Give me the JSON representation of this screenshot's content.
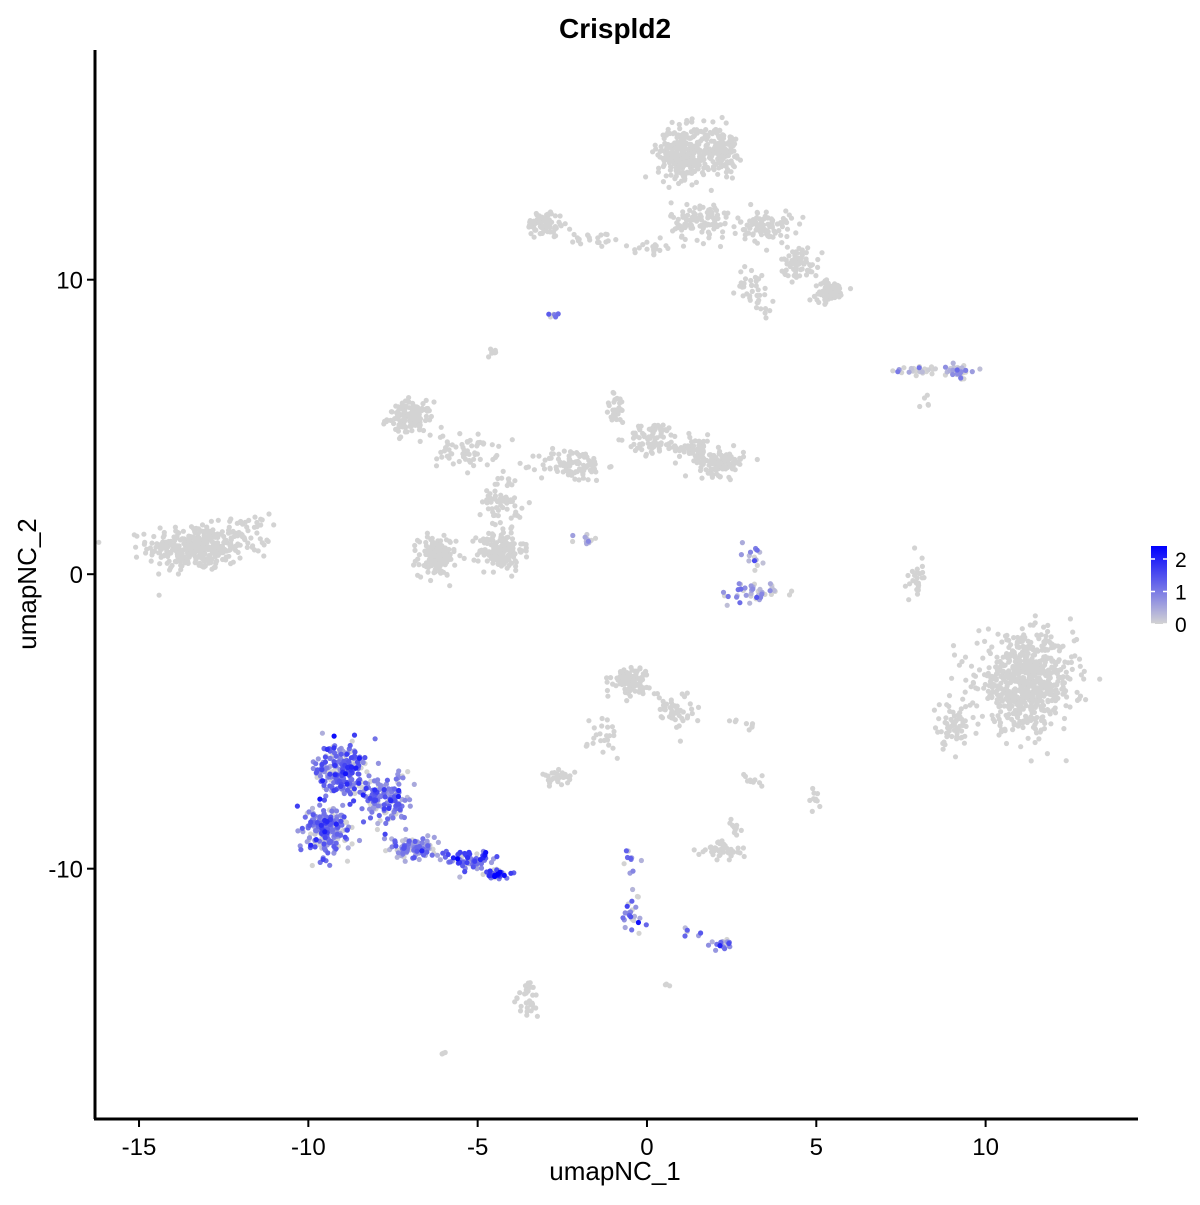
{
  "chart_data": {
    "type": "scatter",
    "title": "Crispld2",
    "xlabel": "umapNC_1",
    "ylabel": "umapNC_2",
    "xlim": [
      -16.3,
      14.5
    ],
    "ylim": [
      -18.5,
      17.8
    ],
    "x_ticks": [
      -15,
      -10,
      -5,
      0,
      5,
      10
    ],
    "y_ticks": [
      -10,
      0,
      10
    ],
    "grid": false,
    "legend": {
      "placement": "right",
      "type": "colorbar",
      "range": [
        0,
        2.4
      ],
      "ticks": [
        0,
        1,
        2
      ],
      "low_color": "#d3d3d3",
      "high_color": "#0000ff"
    },
    "series": [
      {
        "values": [
          {
            "x": -13.3,
            "y": 0.9,
            "sx": 1.3,
            "sy": 0.7,
            "n": 340,
            "expr": 0.0
          },
          {
            "x": -11.8,
            "y": 1.4,
            "sx": 0.6,
            "sy": 0.6,
            "n": 40,
            "expr": 0.0
          },
          {
            "x": -7.0,
            "y": 5.3,
            "sx": 0.6,
            "sy": 0.5,
            "n": 130,
            "expr": 0.0
          },
          {
            "x": -5.3,
            "y": 4.2,
            "sx": 0.8,
            "sy": 0.5,
            "n": 60,
            "expr": 0.0
          },
          {
            "x": -4.3,
            "y": 2.5,
            "sx": 0.5,
            "sy": 0.9,
            "n": 60,
            "expr": 0.0
          },
          {
            "x": -6.2,
            "y": 0.6,
            "sx": 0.5,
            "sy": 0.6,
            "n": 150,
            "expr": 0.0
          },
          {
            "x": -4.3,
            "y": 0.8,
            "sx": 0.6,
            "sy": 0.6,
            "n": 150,
            "expr": 0.0
          },
          {
            "x": -2.2,
            "y": 3.7,
            "sx": 0.9,
            "sy": 0.5,
            "n": 100,
            "expr": 0.0
          },
          {
            "x": -0.9,
            "y": 5.6,
            "sx": 0.3,
            "sy": 0.5,
            "n": 30,
            "expr": 0.0
          },
          {
            "x": 0.2,
            "y": 4.6,
            "sx": 0.7,
            "sy": 0.5,
            "n": 80,
            "expr": 0.0
          },
          {
            "x": 1.4,
            "y": 4.3,
            "sx": 0.5,
            "sy": 0.4,
            "n": 60,
            "expr": 0.0
          },
          {
            "x": 2.2,
            "y": 3.8,
            "sx": 0.6,
            "sy": 0.4,
            "n": 110,
            "expr": 0.0
          },
          {
            "x": -1.8,
            "y": 1.1,
            "sx": 0.5,
            "sy": 0.3,
            "n": 12,
            "expr": 0.3
          },
          {
            "x": 1.1,
            "y": 14.3,
            "sx": 0.7,
            "sy": 0.8,
            "n": 330,
            "expr": 0.0
          },
          {
            "x": 2.2,
            "y": 14.4,
            "sx": 0.4,
            "sy": 0.7,
            "n": 130,
            "expr": 0.0
          },
          {
            "x": 1.6,
            "y": 12.0,
            "sx": 0.8,
            "sy": 0.6,
            "n": 110,
            "expr": 0.0
          },
          {
            "x": 3.5,
            "y": 11.8,
            "sx": 0.7,
            "sy": 0.5,
            "n": 90,
            "expr": 0.0
          },
          {
            "x": 4.5,
            "y": 10.6,
            "sx": 0.5,
            "sy": 0.5,
            "n": 70,
            "expr": 0.0
          },
          {
            "x": 5.4,
            "y": 9.6,
            "sx": 0.4,
            "sy": 0.3,
            "n": 90,
            "expr": 0.0
          },
          {
            "x": 3.2,
            "y": 9.7,
            "sx": 0.5,
            "sy": 0.7,
            "n": 40,
            "expr": 0.0
          },
          {
            "x": -3.0,
            "y": 11.9,
            "sx": 0.5,
            "sy": 0.4,
            "n": 80,
            "expr": 0.0
          },
          {
            "x": -1.5,
            "y": 11.4,
            "sx": 0.7,
            "sy": 0.3,
            "n": 20,
            "expr": 0.0
          },
          {
            "x": 0.1,
            "y": 11.1,
            "sx": 0.4,
            "sy": 0.2,
            "n": 20,
            "expr": 0.0
          },
          {
            "x": -2.8,
            "y": 8.8,
            "sx": 0.15,
            "sy": 0.12,
            "n": 6,
            "expr": 0.5
          },
          {
            "x": -4.5,
            "y": 7.5,
            "sx": 0.2,
            "sy": 0.2,
            "n": 8,
            "expr": 0.0
          },
          {
            "x": 7.9,
            "y": 6.9,
            "sx": 0.6,
            "sy": 0.15,
            "n": 30,
            "expr": 0.1
          },
          {
            "x": 9.2,
            "y": 6.9,
            "sx": 0.4,
            "sy": 0.2,
            "n": 40,
            "expr": 0.3
          },
          {
            "x": 8.3,
            "y": 5.8,
            "sx": 0.2,
            "sy": 0.3,
            "n": 5,
            "expr": 0.0
          },
          {
            "x": 11.2,
            "y": -3.7,
            "sx": 1.3,
            "sy": 1.4,
            "n": 700,
            "expr": 0.0
          },
          {
            "x": 9.0,
            "y": -5.2,
            "sx": 0.5,
            "sy": 0.7,
            "n": 60,
            "expr": 0.0
          },
          {
            "x": 8.0,
            "y": -0.1,
            "sx": 0.2,
            "sy": 0.6,
            "n": 25,
            "expr": 0.0
          },
          {
            "x": 3.2,
            "y": -0.6,
            "sx": 0.9,
            "sy": 0.3,
            "n": 45,
            "expr": 0.6
          },
          {
            "x": 3.2,
            "y": 0.6,
            "sx": 0.3,
            "sy": 0.5,
            "n": 15,
            "expr": 0.4
          },
          {
            "x": -0.5,
            "y": -3.6,
            "sx": 0.5,
            "sy": 0.4,
            "n": 100,
            "expr": 0.0
          },
          {
            "x": 0.8,
            "y": -4.6,
            "sx": 0.5,
            "sy": 0.6,
            "n": 50,
            "expr": 0.0
          },
          {
            "x": -1.2,
            "y": -5.5,
            "sx": 0.5,
            "sy": 0.7,
            "n": 25,
            "expr": 0.0
          },
          {
            "x": -2.6,
            "y": -6.9,
            "sx": 0.4,
            "sy": 0.2,
            "n": 35,
            "expr": 0.0
          },
          {
            "x": 2.2,
            "y": -9.4,
            "sx": 0.6,
            "sy": 0.3,
            "n": 45,
            "expr": 0.0
          },
          {
            "x": 2.6,
            "y": -8.6,
            "sx": 0.2,
            "sy": 0.3,
            "n": 10,
            "expr": 0.0
          },
          {
            "x": 3.2,
            "y": -7.0,
            "sx": 0.3,
            "sy": 0.4,
            "n": 10,
            "expr": 0.0
          },
          {
            "x": 5.0,
            "y": -7.6,
            "sx": 0.15,
            "sy": 0.3,
            "n": 10,
            "expr": 0.0
          },
          {
            "x": 2.8,
            "y": -5.1,
            "sx": 0.3,
            "sy": 0.2,
            "n": 8,
            "expr": 0.0
          },
          {
            "x": -0.4,
            "y": -11.6,
            "sx": 0.3,
            "sy": 0.6,
            "n": 25,
            "expr": 0.9
          },
          {
            "x": -0.5,
            "y": -9.8,
            "sx": 0.2,
            "sy": 0.4,
            "n": 10,
            "expr": 0.6
          },
          {
            "x": 2.3,
            "y": -12.6,
            "sx": 0.3,
            "sy": 0.2,
            "n": 20,
            "expr": 1.1
          },
          {
            "x": 1.3,
            "y": -12.2,
            "sx": 0.4,
            "sy": 0.2,
            "n": 6,
            "expr": 0.7
          },
          {
            "x": 0.6,
            "y": -13.9,
            "sx": 0.1,
            "sy": 0.1,
            "n": 3,
            "expr": 0.0
          },
          {
            "x": -3.5,
            "y": -14.5,
            "sx": 0.3,
            "sy": 0.6,
            "n": 30,
            "expr": 0.0
          },
          {
            "x": -6.0,
            "y": -16.3,
            "sx": 0.1,
            "sy": 0.1,
            "n": 3,
            "expr": 0.0
          },
          {
            "x": -9.0,
            "y": -6.7,
            "sx": 0.7,
            "sy": 0.9,
            "n": 250,
            "expr": 1.1
          },
          {
            "x": -9.5,
            "y": -8.7,
            "sx": 0.6,
            "sy": 0.7,
            "n": 220,
            "expr": 1.0
          },
          {
            "x": -7.7,
            "y": -7.6,
            "sx": 0.6,
            "sy": 0.8,
            "n": 150,
            "expr": 1.0
          },
          {
            "x": -6.9,
            "y": -9.3,
            "sx": 0.6,
            "sy": 0.3,
            "n": 120,
            "expr": 0.7
          },
          {
            "x": -5.3,
            "y": -9.7,
            "sx": 0.6,
            "sy": 0.3,
            "n": 70,
            "expr": 1.3
          },
          {
            "x": -4.4,
            "y": -10.2,
            "sx": 0.3,
            "sy": 0.15,
            "n": 40,
            "expr": 1.6
          }
        ]
      }
    ]
  }
}
